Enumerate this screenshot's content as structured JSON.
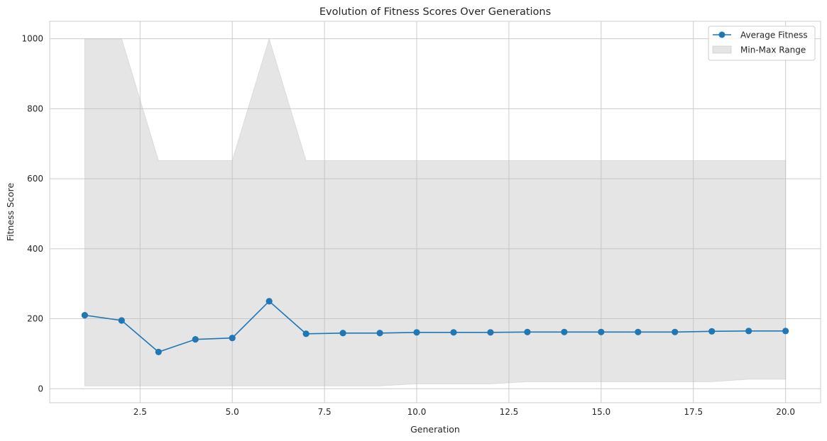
{
  "chart_data": {
    "type": "line",
    "title": "Evolution of Fitness Scores Over Generations",
    "xlabel": "Generation",
    "ylabel": "Fitness Score",
    "xlim": [
      0.05,
      20.95
    ],
    "ylim": [
      -40,
      1050
    ],
    "xticks": [
      2.5,
      5.0,
      7.5,
      10.0,
      12.5,
      15.0,
      17.5,
      20.0
    ],
    "xtick_labels": [
      "2.5",
      "5.0",
      "7.5",
      "10.0",
      "12.5",
      "15.0",
      "17.5",
      "20.0"
    ],
    "yticks": [
      0,
      200,
      400,
      600,
      800,
      1000
    ],
    "ytick_labels": [
      "0",
      "200",
      "400",
      "600",
      "800",
      "1000"
    ],
    "grid": true,
    "legend_position": "top-right",
    "x": [
      1,
      2,
      3,
      4,
      5,
      6,
      7,
      8,
      9,
      10,
      11,
      12,
      13,
      14,
      15,
      16,
      17,
      18,
      19,
      20
    ],
    "series": [
      {
        "name": "Average Fitness",
        "kind": "line-marker",
        "color": "#1f77b4",
        "values": [
          210,
          195,
          105,
          141,
          145,
          250,
          157,
          159,
          159,
          161,
          161,
          161,
          162,
          162,
          162,
          162,
          162,
          164,
          165,
          165
        ]
      },
      {
        "name": "Min-Max Range",
        "kind": "band",
        "color": "#bdbdbd",
        "min": [
          8,
          8,
          8,
          8,
          8,
          8,
          8,
          8,
          8,
          14,
          14,
          14,
          20,
          20,
          20,
          20,
          20,
          20,
          27,
          27
        ],
        "max": [
          1000,
          1000,
          652,
          652,
          652,
          1000,
          652,
          652,
          652,
          652,
          652,
          652,
          652,
          652,
          652,
          652,
          652,
          652,
          652,
          652
        ]
      }
    ]
  }
}
